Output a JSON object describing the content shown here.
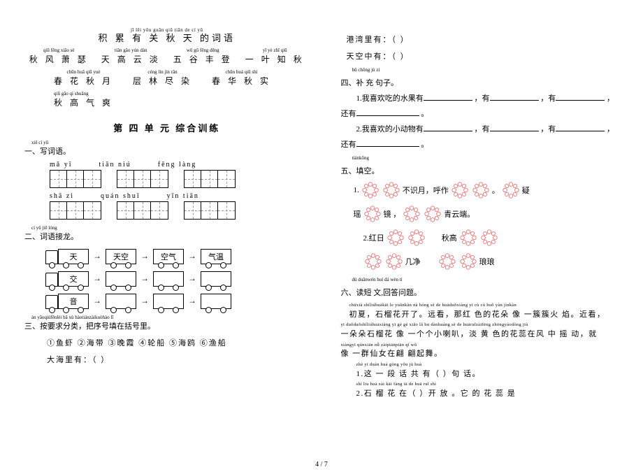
{
  "colors": {
    "text": "#000000",
    "bg": "#ffffff",
    "flower": "#e86b6b",
    "dash": "#999999"
  },
  "header": {
    "title_py": "jī lěi yǒu guān qiū tiān de cí yǔ",
    "title_hz": "积 累 有 关 秋 天 的词语"
  },
  "idioms_row1": [
    {
      "py": "qiū fēng xiāo sè",
      "hz": "秋 风 萧 瑟"
    },
    {
      "py": "tiān gāo yún dàn",
      "hz": "天 高 云 淡"
    },
    {
      "py": "wǔ gǔ fēng dēng",
      "hz": "五 谷 丰 登"
    },
    {
      "py": "yī yè zhī qiū",
      "hz": "一 叶 知 秋"
    }
  ],
  "idioms_row2": [
    {
      "py": "chūn huā qiū yuè",
      "hz": "春 花 秋 月"
    },
    {
      "py": "céng lín jìn rǎn",
      "hz": "层 林 尽 染"
    },
    {
      "py": "chūn huá qiū shí",
      "hz": "春 华 秋 实"
    }
  ],
  "idioms_row3": {
    "py": "qiū gāo qì shuǎng",
    "hz": "秋 高 气 爽"
  },
  "unit_title": "第 四 单 元 综合训练",
  "s1": {
    "head_py": "xiě cí yǔ",
    "head_hz": "一、写词语。",
    "row1_py": [
      "mǎ  yǐ",
      "tiān  niú",
      "fēng  làng"
    ],
    "row2_py": [
      "shā  zi",
      "quán  shuǐ",
      "yīn  tiān"
    ]
  },
  "s2": {
    "head_py": "cí yǔ jiē lóng",
    "head_hz": "二、词语接龙。",
    "chains": [
      [
        "天",
        "天空",
        "空气",
        "气温"
      ],
      [
        "交",
        "",
        "",
        ""
      ],
      [
        "音",
        "",
        "",
        ""
      ]
    ]
  },
  "s3": {
    "head_py": "àn yāoqiúfēnlèi bǎ xù hàotiánzàikuòhào lǐ",
    "head_hz": "三、按要求分类，把序号填在括号里。",
    "opts": "①鱼虾 ②海带 ③晚霞 ④轮船 ⑤海鸥 ⑥渔船",
    "lines": [
      "大海里有：（                                  ）",
      "港湾里有：（                                  ）",
      "天空中有：（                                  ）"
    ]
  },
  "s4": {
    "head_py": "bǔ chōng jù zi",
    "head_hz": "四、补 充 句子。",
    "l1a": "1.我喜欢吃的水果有",
    "l1b": "，有",
    "l1c": "，有",
    "l1d": "，",
    "l2a": "还有",
    "l2b": "。",
    "l3a": "2.我喜欢的小动物有",
    "l3b": "，有",
    "l3c": "，有",
    "l3d": "，",
    "l4a": "还有",
    "l4b": "。"
  },
  "s5": {
    "head_py": "tiánkōng",
    "head_hz": "五、填空。",
    "l1": {
      "a": "1.",
      "b": "不识月，呼作",
      "c": "。",
      "d": "疑"
    },
    "l2": {
      "a": "瑶",
      "b": "镜 ，",
      "c": "青云端。"
    },
    "l3": {
      "a": "2.红日",
      "b": "秋高"
    },
    "l4": {
      "a": "几净",
      "b": "琅琅"
    }
  },
  "s6": {
    "head_py": "dú duǎnwén huí dá wèn tí",
    "head_hz": "六、读短 文,回答问题。",
    "p1_py": "chūxià shíliúhuākāi le yuǎnkàn nà hóng sè de huāduǒxiàng yī cù cù huǒ yàn jìnkàn",
    "p1_hz": "初夏，石榴花开了。远看，那红 色的花朵 像 一簇簇火 焰。近看，",
    "p2_py": "yī duǒduǒshíliúhuāxiàng yī gè gè xiǎo lǎ bɑ dànhuáng sè de huāruǐzàifēng zhōngyáodòng jiù",
    "p2_hz": "一朵朵石榴花 像 一个个小喇叭，淡 黄 色的花蕊在风 中 摇 动，就",
    "p3_py": "xiàngyī qúnxiān nǚ zàipiānpiān qǐ wǔ",
    "p3_hz": "像 一群仙女在翩 翩起舞。",
    "q1_py": "zhè yī duàn huà gòng yǒu        jù huà",
    "q1_hz": "1.这 一 段 话 共 有（        ）句 话。",
    "q2_py": "shí liu huā zài          kāi fàng   tā de huā ruǐ shì",
    "q2_hz": "2.石 榴 花 在（        ）开 放 。它 的 花 蕊 是"
  },
  "page_num": "4 / 7"
}
